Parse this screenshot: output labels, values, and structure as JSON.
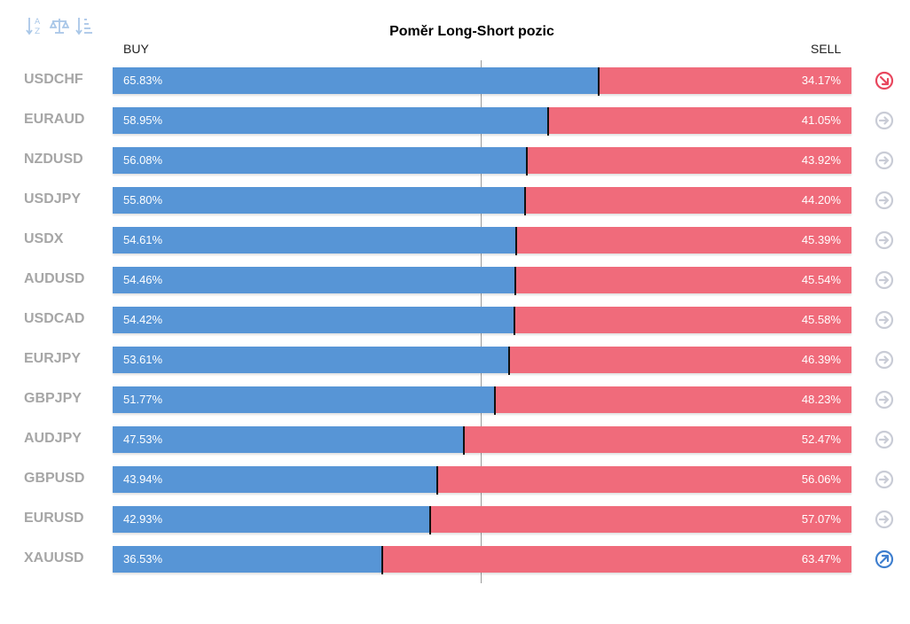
{
  "title": "Poměr Long-Short pozic",
  "buy_label": "BUY",
  "sell_label": "SELL",
  "toolbar": {
    "sort_az_icon": "sort-alpha-icon",
    "balance_icon": "balance-scale-icon",
    "sort_amount_icon": "sort-amount-down-icon",
    "color": "#a9c7e8"
  },
  "colors": {
    "buy": "#5795d6",
    "sell": "#f06b7b",
    "neutral_icon": "#c9ccd6",
    "down_icon": "#e8475e",
    "up_icon": "#3f7fcf"
  },
  "chart_data": {
    "type": "bar",
    "orientation": "horizontal",
    "stacked": true,
    "title": "Poměr Long-Short pozic",
    "series": [
      {
        "name": "BUY",
        "values": [
          65.83,
          58.95,
          56.08,
          55.8,
          54.61,
          54.46,
          54.42,
          53.61,
          51.77,
          47.53,
          43.94,
          42.93,
          36.53
        ]
      },
      {
        "name": "SELL",
        "values": [
          34.17,
          41.05,
          43.92,
          44.2,
          45.39,
          45.54,
          45.58,
          46.39,
          48.23,
          52.47,
          56.06,
          57.07,
          63.47
        ]
      }
    ],
    "categories": [
      "USDCHF",
      "EURAUD",
      "NZDUSD",
      "USDJPY",
      "USDX",
      "AUDUSD",
      "USDCAD",
      "EURJPY",
      "GBPJPY",
      "AUDJPY",
      "GBPUSD",
      "EURUSD",
      "XAUUSD"
    ],
    "rows": [
      {
        "symbol": "USDCHF",
        "buy": "65.83%",
        "sell": "34.17%",
        "buy_value": 65.83,
        "signal": "down-right-arrow-icon"
      },
      {
        "symbol": "EURAUD",
        "buy": "58.95%",
        "sell": "41.05%",
        "buy_value": 58.95,
        "signal": "right-arrow-icon"
      },
      {
        "symbol": "NZDUSD",
        "buy": "56.08%",
        "sell": "43.92%",
        "buy_value": 56.08,
        "signal": "right-arrow-icon"
      },
      {
        "symbol": "USDJPY",
        "buy": "55.80%",
        "sell": "44.20%",
        "buy_value": 55.8,
        "signal": "right-arrow-icon"
      },
      {
        "symbol": "USDX",
        "buy": "54.61%",
        "sell": "45.39%",
        "buy_value": 54.61,
        "signal": "right-arrow-icon"
      },
      {
        "symbol": "AUDUSD",
        "buy": "54.46%",
        "sell": "45.54%",
        "buy_value": 54.46,
        "signal": "right-arrow-icon"
      },
      {
        "symbol": "USDCAD",
        "buy": "54.42%",
        "sell": "45.58%",
        "buy_value": 54.42,
        "signal": "right-arrow-icon"
      },
      {
        "symbol": "EURJPY",
        "buy": "53.61%",
        "sell": "46.39%",
        "buy_value": 53.61,
        "signal": "right-arrow-icon"
      },
      {
        "symbol": "GBPJPY",
        "buy": "51.77%",
        "sell": "48.23%",
        "buy_value": 51.77,
        "signal": "right-arrow-icon"
      },
      {
        "symbol": "AUDJPY",
        "buy": "47.53%",
        "sell": "52.47%",
        "buy_value": 47.53,
        "signal": "right-arrow-icon"
      },
      {
        "symbol": "GBPUSD",
        "buy": "43.94%",
        "sell": "56.06%",
        "buy_value": 43.94,
        "signal": "right-arrow-icon"
      },
      {
        "symbol": "EURUSD",
        "buy": "42.93%",
        "sell": "57.07%",
        "buy_value": 42.93,
        "signal": "right-arrow-icon"
      },
      {
        "symbol": "XAUUSD",
        "buy": "36.53%",
        "sell": "63.47%",
        "buy_value": 36.53,
        "signal": "up-right-arrow-icon"
      }
    ],
    "xlim": [
      0,
      100
    ],
    "reference_line": 50,
    "legend": "none",
    "grid": false
  }
}
